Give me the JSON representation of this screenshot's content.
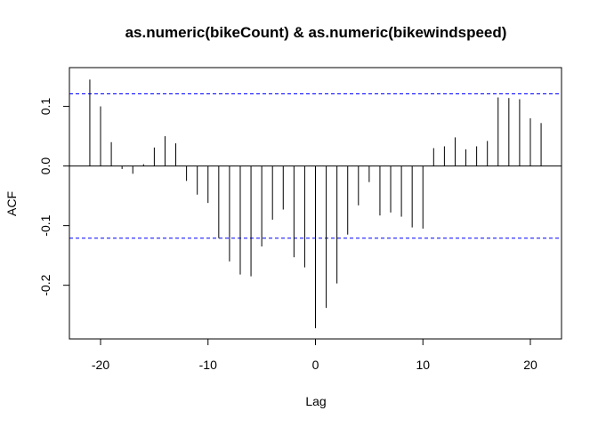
{
  "chart_data": {
    "type": "bar",
    "title": "as.numeric(bikeCount) & as.numeric(bikewindspeed)",
    "xlabel": "Lag",
    "ylabel": "ACF",
    "xlim": [
      -22.9,
      22.9
    ],
    "ylim": [
      -0.29,
      0.165
    ],
    "x_ticks": [
      -20,
      -10,
      0,
      10,
      20
    ],
    "x_tick_labels": [
      "-20",
      "-10",
      "0",
      "10",
      "20"
    ],
    "y_ticks": [
      -0.2,
      -0.1,
      0.0,
      0.1
    ],
    "y_tick_labels": [
      "-0.2",
      "-0.1",
      "0.0",
      "0.1"
    ],
    "confidence_limit": 0.121,
    "confidence_color": "#0000ff",
    "bar_color": "#000000",
    "x": [
      -21,
      -20,
      -19,
      -18,
      -17,
      -16,
      -15,
      -14,
      -13,
      -12,
      -11,
      -10,
      -9,
      -8,
      -7,
      -6,
      -5,
      -4,
      -3,
      -2,
      -1,
      0,
      1,
      2,
      3,
      4,
      5,
      6,
      7,
      8,
      9,
      10,
      11,
      12,
      13,
      14,
      15,
      16,
      17,
      18,
      19,
      20,
      21
    ],
    "values": [
      0.145,
      0.1,
      0.04,
      -0.005,
      -0.013,
      0.003,
      0.031,
      0.05,
      0.038,
      -0.025,
      -0.048,
      -0.062,
      -0.121,
      -0.16,
      -0.182,
      -0.185,
      -0.135,
      -0.09,
      -0.073,
      -0.153,
      -0.17,
      -0.272,
      -0.238,
      -0.197,
      -0.115,
      -0.066,
      -0.027,
      -0.083,
      -0.078,
      -0.085,
      -0.103,
      -0.105,
      0.03,
      0.033,
      0.048,
      0.028,
      0.033,
      0.042,
      0.115,
      0.114,
      0.112,
      0.08,
      0.072
    ]
  }
}
